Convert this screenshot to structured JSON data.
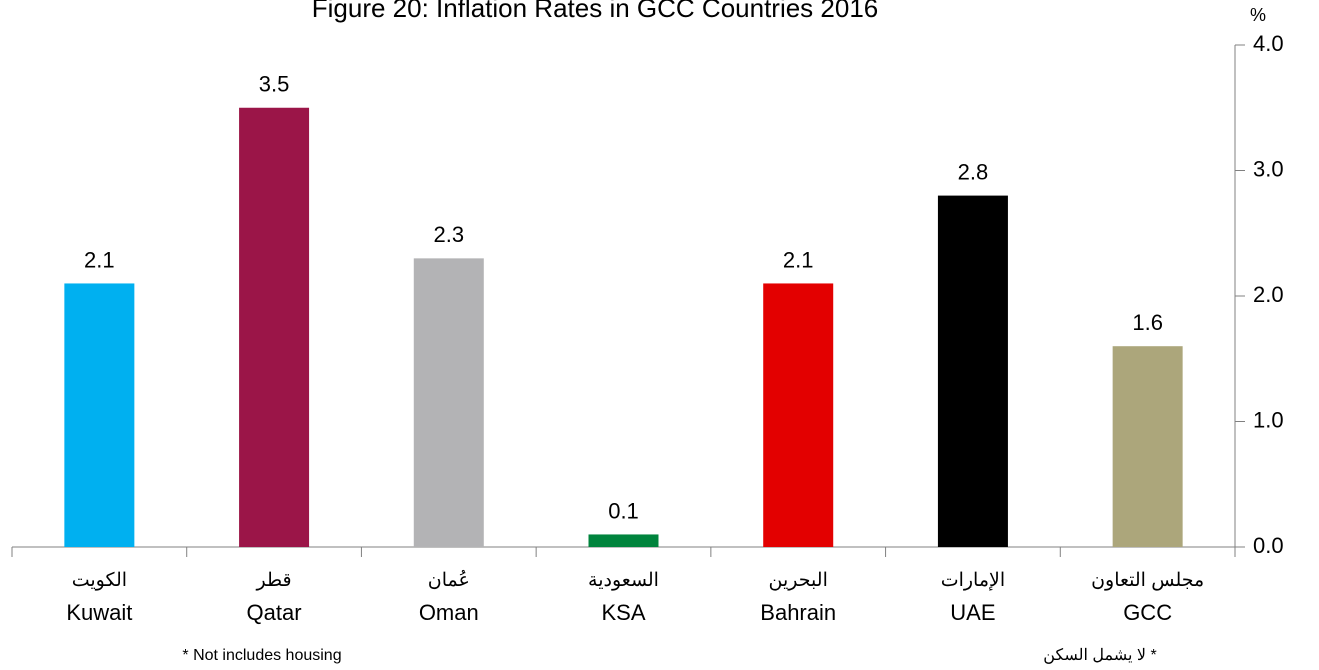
{
  "chart_data": {
    "type": "bar",
    "title": "Figure 20: Inflation Rates in GCC Countries 2016",
    "unit": "%",
    "categories": [
      "Kuwait",
      "Qatar",
      "Oman",
      "KSA",
      "Bahrain",
      "UAE",
      "GCC"
    ],
    "categories_ar": [
      "الكويت",
      "قطر",
      "عُمان",
      "السعودية",
      "البحرين",
      "الإمارات",
      "مجلس التعاون"
    ],
    "values": [
      2.1,
      3.5,
      2.3,
      0.1,
      2.1,
      2.8,
      1.6
    ],
    "colors": [
      "#00b0f0",
      "#9b1548",
      "#b3b3b5",
      "#00843d",
      "#e30000",
      "#000000",
      "#aca67b"
    ],
    "ylim": [
      0,
      4
    ],
    "yticks": [
      {
        "value": 0,
        "label": "0.0"
      },
      {
        "value": 1,
        "label": "1.0"
      },
      {
        "value": 2,
        "label": "2.0"
      },
      {
        "value": 3,
        "label": "3.0"
      },
      {
        "value": 4,
        "label": "4.0"
      }
    ],
    "y_axis_side": "right",
    "footnote": "* Not includes housing",
    "footnote_ar": "* لا يشمل السكن"
  }
}
